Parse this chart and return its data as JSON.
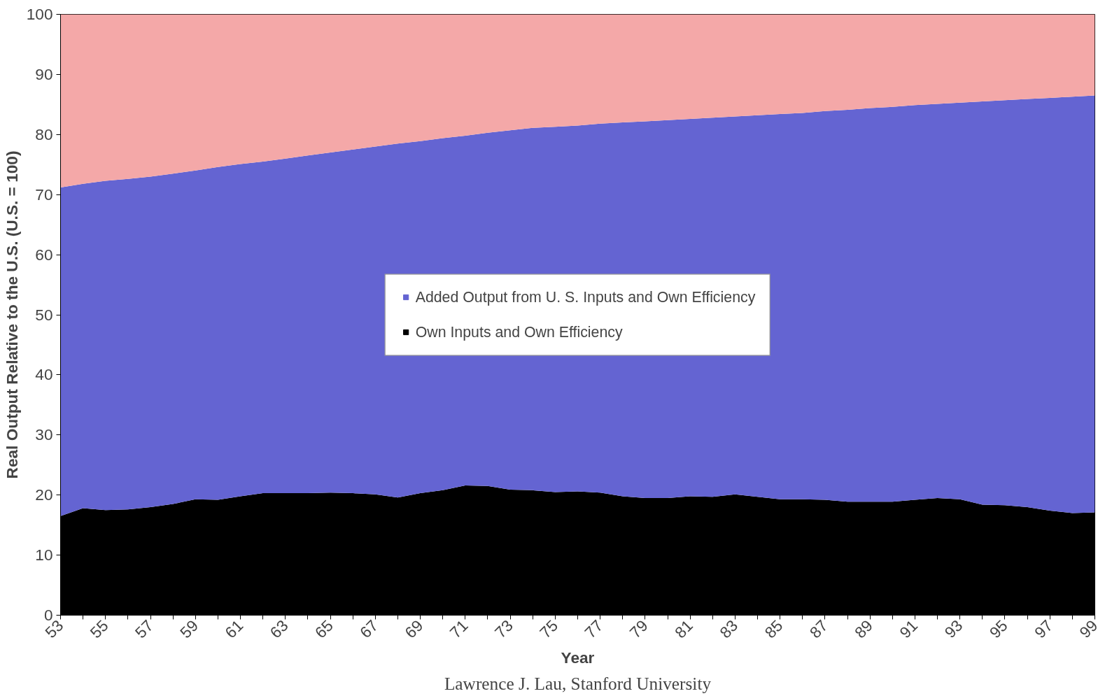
{
  "chart_data": {
    "type": "area",
    "stacked": true,
    "xlabel": "Year",
    "ylabel": "Real Output Relative to the U.S. (U.S. = 100)",
    "annotations": [
      "Lawrence J. Lau, Stanford University"
    ],
    "x": [
      53,
      54,
      55,
      56,
      57,
      58,
      59,
      60,
      61,
      62,
      63,
      64,
      65,
      66,
      67,
      68,
      69,
      70,
      71,
      72,
      73,
      74,
      75,
      76,
      77,
      78,
      79,
      80,
      81,
      82,
      83,
      84,
      85,
      86,
      87,
      88,
      89,
      90,
      91,
      92,
      93,
      94,
      95,
      96,
      97,
      98,
      99
    ],
    "series": [
      {
        "name": "Own Inputs and Own Efficiency",
        "color": "#000000",
        "values": [
          16.5,
          17.8,
          17.5,
          17.6,
          18.0,
          18.5,
          19.3,
          19.2,
          19.8,
          20.3,
          20.3,
          20.3,
          20.4,
          20.3,
          20.1,
          19.6,
          20.3,
          20.8,
          21.6,
          21.5,
          20.9,
          20.8,
          20.5,
          20.6,
          20.4,
          19.8,
          19.5,
          19.5,
          19.8,
          19.7,
          20.1,
          19.7,
          19.3,
          19.3,
          19.2,
          18.9,
          18.9,
          18.9,
          19.2,
          19.5,
          19.3,
          18.4,
          18.3,
          18.0,
          17.4,
          17.0,
          17.1
        ]
      },
      {
        "name": "Added Output from U. S. Inputs and Own Efficiency",
        "color": "#6464d2",
        "values": [
          54.7,
          54.0,
          54.8,
          55.0,
          55.0,
          55.0,
          54.7,
          55.4,
          55.3,
          55.2,
          55.7,
          56.2,
          56.6,
          57.2,
          57.9,
          58.9,
          58.6,
          58.6,
          58.2,
          58.8,
          59.8,
          60.3,
          60.8,
          60.9,
          61.4,
          62.2,
          62.7,
          62.9,
          62.8,
          63.1,
          62.9,
          63.5,
          64.1,
          64.3,
          64.7,
          65.2,
          65.5,
          65.7,
          65.7,
          65.6,
          66.0,
          67.1,
          67.4,
          67.9,
          68.7,
          69.3,
          69.4
        ]
      },
      {
        "color": "#f4a8a8",
        "values": [
          28.8,
          28.2,
          27.7,
          27.4,
          27.0,
          26.5,
          26.0,
          25.4,
          24.9,
          24.5,
          24.0,
          23.5,
          23.0,
          22.5,
          22.0,
          21.5,
          21.1,
          20.6,
          20.2,
          19.7,
          19.3,
          18.9,
          18.7,
          18.5,
          18.2,
          18.0,
          17.8,
          17.6,
          17.4,
          17.2,
          17.0,
          16.8,
          16.6,
          16.4,
          16.1,
          15.9,
          15.6,
          15.4,
          15.1,
          14.9,
          14.7,
          14.5,
          14.3,
          14.1,
          13.9,
          13.7,
          13.5
        ]
      }
    ],
    "xlim": [
      53,
      99
    ],
    "xticks": [
      53,
      {
        "value": 54,
        "label": null
      },
      55,
      {
        "value": 56,
        "label": null
      },
      57,
      {
        "value": 58,
        "label": null
      },
      59,
      {
        "value": 60,
        "label": null
      },
      61,
      {
        "value": 62,
        "label": null
      },
      63,
      {
        "value": 64,
        "label": null
      },
      65,
      {
        "value": 66,
        "label": null
      },
      67,
      {
        "value": 68,
        "label": null
      },
      69,
      {
        "value": 70,
        "label": null
      },
      71,
      {
        "value": 72,
        "label": null
      },
      73,
      {
        "value": 74,
        "label": null
      },
      75,
      {
        "value": 76,
        "label": null
      },
      77,
      {
        "value": 78,
        "label": null
      },
      79,
      {
        "value": 80,
        "label": null
      },
      81,
      {
        "value": 82,
        "label": null
      },
      83,
      {
        "value": 84,
        "label": null
      },
      85,
      {
        "value": 86,
        "label": null
      },
      87,
      {
        "value": 88,
        "label": null
      },
      89,
      {
        "value": 90,
        "label": null
      },
      91,
      {
        "value": 92,
        "label": null
      },
      93,
      {
        "value": 94,
        "label": null
      },
      95,
      {
        "value": 96,
        "label": null
      },
      97,
      {
        "value": 98,
        "label": null
      },
      99
    ],
    "ylim": [
      0,
      100
    ],
    "yticks": [
      0,
      10,
      20,
      30,
      40,
      50,
      60,
      70,
      80,
      90,
      100
    ],
    "grid": false,
    "legend": "center"
  }
}
